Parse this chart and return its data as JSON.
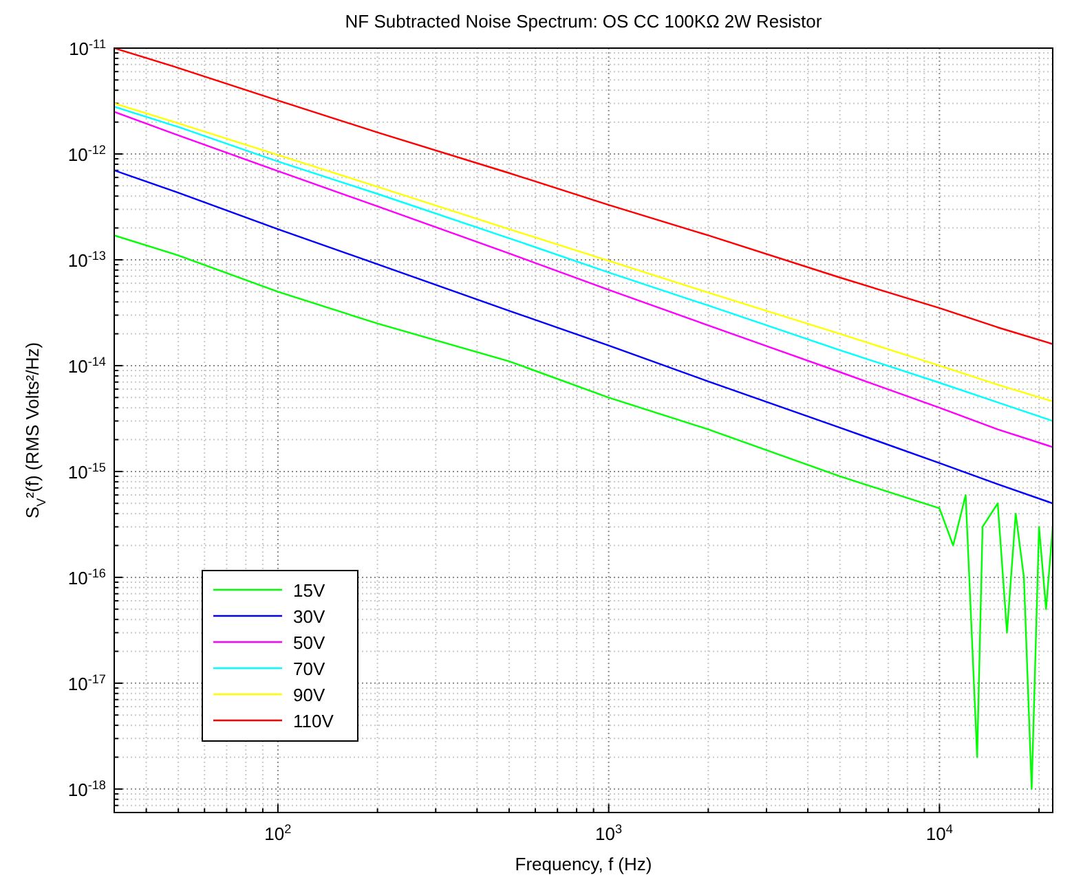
{
  "chart_data": {
    "type": "line",
    "title": "NF Subtracted Noise Spectrum: OS CC 100KΩ 2W Resistor",
    "xlabel": "Frequency, f (Hz)",
    "ylabel": "S$_{V}$²(f) (RMS Volts²/Hz)",
    "log": "xy",
    "grid": true,
    "legend": "bottom left",
    "marker": "none",
    "line_style": "solid",
    "xlim": [
      32,
      22000
    ],
    "ylim": [
      6e-19,
      1e-11
    ],
    "xticks": [
      {
        "value": 40,
        "label": null
      },
      {
        "value": 50,
        "label": null
      },
      {
        "value": 60,
        "label": null
      },
      {
        "value": 70,
        "label": null
      },
      {
        "value": 80,
        "label": null
      },
      {
        "value": 90,
        "label": null
      },
      {
        "value": 100,
        "label": "10$^{2}$"
      },
      {
        "value": 200,
        "label": null
      },
      {
        "value": 300,
        "label": null
      },
      {
        "value": 400,
        "label": null
      },
      {
        "value": 500,
        "label": null
      },
      {
        "value": 600,
        "label": null
      },
      {
        "value": 700,
        "label": null
      },
      {
        "value": 800,
        "label": null
      },
      {
        "value": 900,
        "label": null
      },
      {
        "value": 1000,
        "label": "10$^{3}$"
      },
      {
        "value": 2000,
        "label": null
      },
      {
        "value": 3000,
        "label": null
      },
      {
        "value": 4000,
        "label": null
      },
      {
        "value": 5000,
        "label": null
      },
      {
        "value": 6000,
        "label": null
      },
      {
        "value": 7000,
        "label": null
      },
      {
        "value": 8000,
        "label": null
      },
      {
        "value": 9000,
        "label": null
      },
      {
        "value": 10000,
        "label": "10$^{4}$"
      },
      {
        "value": 20000,
        "label": null
      }
    ],
    "yticks": [
      {
        "value": 7e-19,
        "label": null
      },
      {
        "value": 8e-19,
        "label": null
      },
      {
        "value": 9e-19,
        "label": null
      },
      {
        "value": 1e-18,
        "label": "10$^{-18}$"
      },
      {
        "value": 2e-18,
        "label": null
      },
      {
        "value": 3e-18,
        "label": null
      },
      {
        "value": 4e-18,
        "label": null
      },
      {
        "value": 5e-18,
        "label": null
      },
      {
        "value": 6e-18,
        "label": null
      },
      {
        "value": 7e-18,
        "label": null
      },
      {
        "value": 8e-18,
        "label": null
      },
      {
        "value": 9e-18,
        "label": null
      },
      {
        "value": 1e-17,
        "label": "10$^{-17}$"
      },
      {
        "value": 2e-17,
        "label": null
      },
      {
        "value": 3e-17,
        "label": null
      },
      {
        "value": 4e-17,
        "label": null
      },
      {
        "value": 5e-17,
        "label": null
      },
      {
        "value": 6e-17,
        "label": null
      },
      {
        "value": 7e-17,
        "label": null
      },
      {
        "value": 8e-17,
        "label": null
      },
      {
        "value": 9e-17,
        "label": null
      },
      {
        "value": 1e-16,
        "label": "10$^{-16}$"
      },
      {
        "value": 2e-16,
        "label": null
      },
      {
        "value": 3e-16,
        "label": null
      },
      {
        "value": 4e-16,
        "label": null
      },
      {
        "value": 5e-16,
        "label": null
      },
      {
        "value": 6e-16,
        "label": null
      },
      {
        "value": 7e-16,
        "label": null
      },
      {
        "value": 8e-16,
        "label": null
      },
      {
        "value": 9e-16,
        "label": null
      },
      {
        "value": 1e-15,
        "label": "10$^{-15}$"
      },
      {
        "value": 2e-15,
        "label": null
      },
      {
        "value": 3e-15,
        "label": null
      },
      {
        "value": 4e-15,
        "label": null
      },
      {
        "value": 5e-15,
        "label": null
      },
      {
        "value": 6e-15,
        "label": null
      },
      {
        "value": 7e-15,
        "label": null
      },
      {
        "value": 8e-15,
        "label": null
      },
      {
        "value": 9e-15,
        "label": null
      },
      {
        "value": 1e-14,
        "label": "10$^{-14}$"
      },
      {
        "value": 2e-14,
        "label": null
      },
      {
        "value": 3e-14,
        "label": null
      },
      {
        "value": 4e-14,
        "label": null
      },
      {
        "value": 5e-14,
        "label": null
      },
      {
        "value": 6e-14,
        "label": null
      },
      {
        "value": 7e-14,
        "label": null
      },
      {
        "value": 8e-14,
        "label": null
      },
      {
        "value": 9e-14,
        "label": null
      },
      {
        "value": 1e-13,
        "label": "10$^{-13}$"
      },
      {
        "value": 2e-13,
        "label": null
      },
      {
        "value": 3e-13,
        "label": null
      },
      {
        "value": 4e-13,
        "label": null
      },
      {
        "value": 5e-13,
        "label": null
      },
      {
        "value": 6e-13,
        "label": null
      },
      {
        "value": 7e-13,
        "label": null
      },
      {
        "value": 8e-13,
        "label": null
      },
      {
        "value": 9e-13,
        "label": null
      },
      {
        "value": 1e-12,
        "label": "10$^{-12}$"
      },
      {
        "value": 2e-12,
        "label": null
      },
      {
        "value": 3e-12,
        "label": null
      },
      {
        "value": 4e-12,
        "label": null
      },
      {
        "value": 5e-12,
        "label": null
      },
      {
        "value": 6e-12,
        "label": null
      },
      {
        "value": 7e-12,
        "label": null
      },
      {
        "value": 8e-12,
        "label": null
      },
      {
        "value": 9e-12,
        "label": null
      },
      {
        "value": 1e-11,
        "label": "10$^{-11}$"
      }
    ],
    "x": [
      32,
      50,
      100,
      200,
      500,
      1000,
      2000,
      5000,
      10000,
      15000,
      22000
    ],
    "series": [
      {
        "name": "15V",
        "color": "#00ff00",
        "x": [
          32,
          50,
          100,
          200,
          500,
          1000,
          2000,
          5000,
          10000,
          11000,
          12000,
          13000,
          13500,
          15000,
          16000,
          17000,
          18000,
          19000,
          20000,
          21000,
          22000
        ],
        "values": [
          1.7e-13,
          1.1e-13,
          5e-14,
          2.5e-14,
          1.1e-14,
          5e-15,
          2.5e-15,
          9e-16,
          4.5e-16,
          2e-16,
          6e-16,
          2e-18,
          3e-16,
          5e-16,
          3e-17,
          4e-16,
          1e-16,
          1e-18,
          3e-16,
          5e-17,
          3e-16
        ]
      },
      {
        "name": "30V",
        "color": "#0000ff",
        "values": [
          7e-13,
          4.3e-13,
          1.95e-13,
          9.1e-14,
          3.3e-14,
          1.55e-14,
          7.1e-15,
          2.6e-15,
          1.2e-15,
          7.6e-16,
          5e-16
        ]
      },
      {
        "name": "50V",
        "color": "#ff00ff",
        "values": [
          2.5e-12,
          1.5e-12,
          6.9e-13,
          3.2e-13,
          1.15e-13,
          5.2e-14,
          2.4e-14,
          8.7e-15,
          4e-15,
          2.5e-15,
          1.7e-15
        ]
      },
      {
        "name": "70V",
        "color": "#00ffff",
        "values": [
          2.8e-12,
          1.8e-12,
          8.5e-13,
          4.2e-13,
          1.6e-13,
          7.6e-14,
          3.7e-14,
          1.4e-14,
          6.9e-15,
          4.5e-15,
          3e-15
        ]
      },
      {
        "name": "90V",
        "color": "#ffff00",
        "values": [
          3e-12,
          1.95e-12,
          9.8e-13,
          4.9e-13,
          1.95e-13,
          9.8e-14,
          4.9e-14,
          2e-14,
          1e-14,
          6.6e-15,
          4.6e-15
        ]
      },
      {
        "name": "110V",
        "color": "#ff0000",
        "values": [
          1e-11,
          6.5e-12,
          3.2e-12,
          1.6e-12,
          6.6e-13,
          3.3e-13,
          1.7e-13,
          6.8e-14,
          3.5e-14,
          2.3e-14,
          1.6e-14
        ]
      }
    ]
  }
}
